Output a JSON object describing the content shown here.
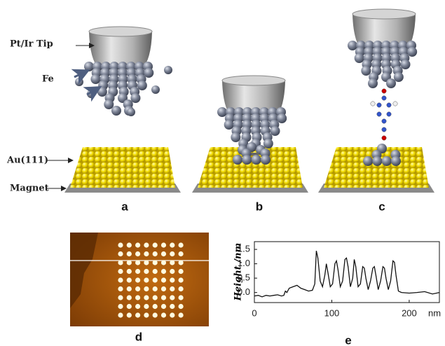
{
  "figure": {
    "labels": {
      "tip": "Pt/Ir Tip",
      "fe": "Fe",
      "au": "Au(111)",
      "magnet": "Magnet"
    },
    "panels": [
      "a",
      "b",
      "c",
      "d"
    ]
  },
  "chart_data": {
    "type": "line",
    "panel": "e",
    "ylabel": "Height /nm",
    "xlabel": "nm",
    "x": [
      0,
      5,
      10,
      15,
      20,
      25,
      30,
      35,
      38,
      40,
      42,
      45,
      50,
      55,
      60,
      65,
      70,
      75,
      78,
      80,
      82,
      85,
      88,
      91,
      93,
      95,
      98,
      101,
      104,
      106,
      108,
      111,
      114,
      117,
      119,
      121,
      124,
      127,
      129,
      131,
      134,
      137,
      140,
      142,
      144,
      147,
      150,
      153,
      155,
      157,
      160,
      163,
      166,
      168,
      170,
      173,
      176,
      179,
      181,
      183,
      186,
      190,
      200,
      210,
      220,
      230,
      239
    ],
    "series": [
      {
        "color": "#111111",
        "values": [
          -0.12,
          -0.1,
          -0.15,
          -0.1,
          -0.12,
          -0.1,
          -0.08,
          -0.12,
          -0.1,
          0.05,
          0.0,
          0.15,
          0.2,
          0.25,
          0.15,
          0.1,
          0.05,
          0.08,
          0.3,
          1.45,
          1.2,
          0.4,
          0.2,
          0.6,
          1.0,
          0.7,
          0.2,
          0.3,
          1.0,
          1.1,
          0.8,
          0.2,
          0.4,
          1.15,
          1.2,
          0.9,
          0.2,
          0.5,
          1.15,
          0.9,
          0.2,
          0.3,
          0.9,
          0.85,
          0.5,
          0.1,
          0.4,
          0.85,
          0.9,
          0.6,
          0.1,
          0.4,
          0.9,
          0.85,
          0.5,
          0.1,
          0.4,
          1.1,
          1.05,
          0.6,
          0.05,
          0.0,
          -0.02,
          0.0,
          0.03,
          -0.05,
          0.0
        ]
      }
    ],
    "xlim": [
      0,
      239
    ],
    "ylim": [
      -0.35,
      1.77
    ],
    "xticks": [
      0,
      100,
      200
    ],
    "yticks": [
      {
        "value": 0,
        "label": "0.0"
      },
      0.5,
      {
        "value": 1,
        "label": "1.0"
      },
      1.5
    ]
  }
}
